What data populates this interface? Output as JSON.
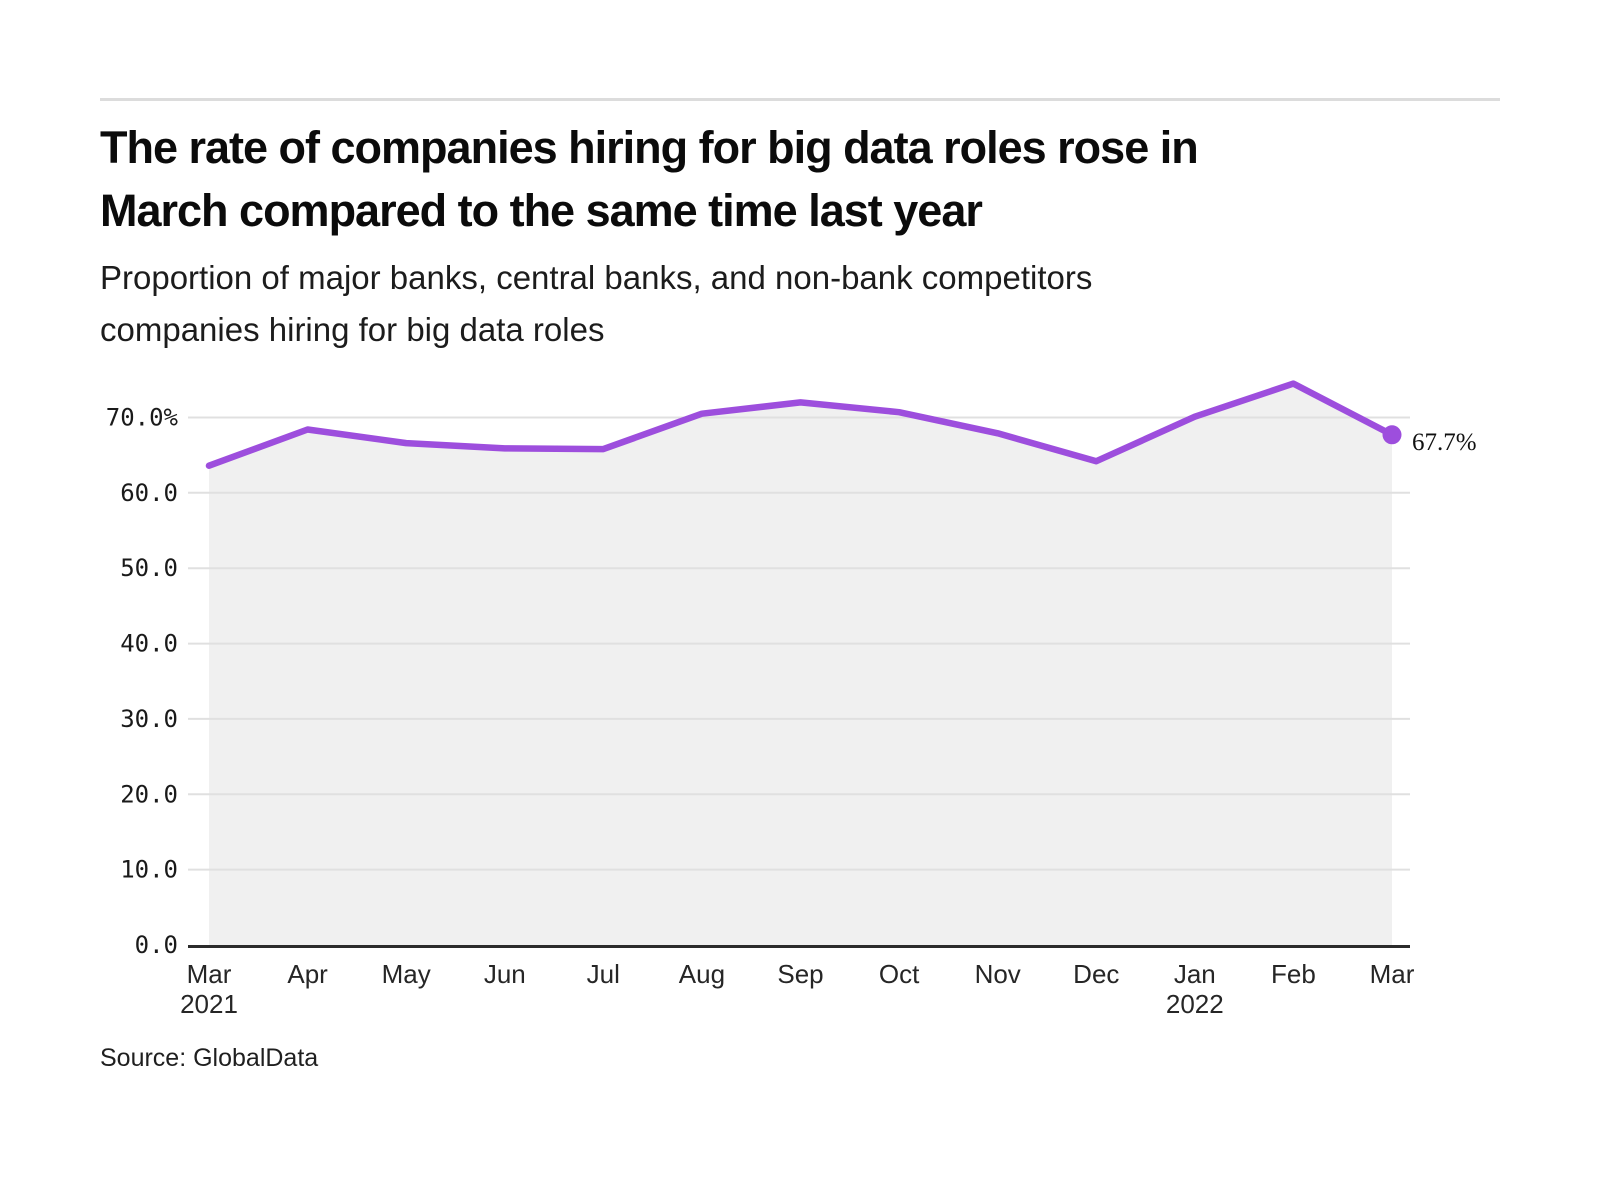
{
  "header": {
    "title_lines": [
      "The rate of companies hiring for big data roles rose in",
      "March compared to the same time last year"
    ],
    "subtitle_lines": [
      "Proportion of major banks, central banks, and non-bank competitors",
      "companies hiring for big data roles"
    ]
  },
  "footer": {
    "source": "Source: GlobalData"
  },
  "colors": {
    "line": "#9d4edd",
    "end_dot": "#9d4edd",
    "area_fill": "#f0f0f0",
    "grid": "#e0e0e0",
    "axis": "#2b2b2b",
    "divider": "#dcdcdc",
    "tick_text": "#1a1a1a",
    "annotation_text": "#111111"
  },
  "chart_data": {
    "type": "line",
    "title": "The rate of companies hiring for big data roles rose in March compared to the same time last year",
    "subtitle": "Proportion of major banks, central banks, and non-bank competitors companies hiring for big data roles",
    "categories": [
      "Mar 2021",
      "Apr",
      "May",
      "Jun",
      "Jul",
      "Aug",
      "Sep",
      "Oct",
      "Nov",
      "Dec",
      "Jan 2022",
      "Feb",
      "Mar 2022"
    ],
    "x_tick_labels": [
      "Mar",
      "Apr",
      "May",
      "Jun",
      "Jul",
      "Aug",
      "Sep",
      "Oct",
      "Nov",
      "Dec",
      "Jan",
      "Feb",
      "Mar"
    ],
    "x_year_labels": [
      {
        "index": 0,
        "label": "2021"
      },
      {
        "index": 10,
        "label": "2022"
      }
    ],
    "series": [
      {
        "name": "Proportion of companies hiring for big data roles",
        "values": [
          63.6,
          68.4,
          66.6,
          65.9,
          65.8,
          70.5,
          72.0,
          70.7,
          67.9,
          64.2,
          70.1,
          74.5,
          67.7
        ]
      }
    ],
    "end_point_label": "67.7%",
    "y_ticks": [
      0,
      10,
      20,
      30,
      40,
      50,
      60,
      70
    ],
    "y_tick_labels": [
      "0.0",
      "10.0",
      "20.0",
      "30.0",
      "40.0",
      "50.0",
      "60.0",
      "70.0%"
    ],
    "ylim": [
      0,
      78
    ],
    "grid": true,
    "legend_position": "none",
    "xlabel": "",
    "ylabel": ""
  }
}
